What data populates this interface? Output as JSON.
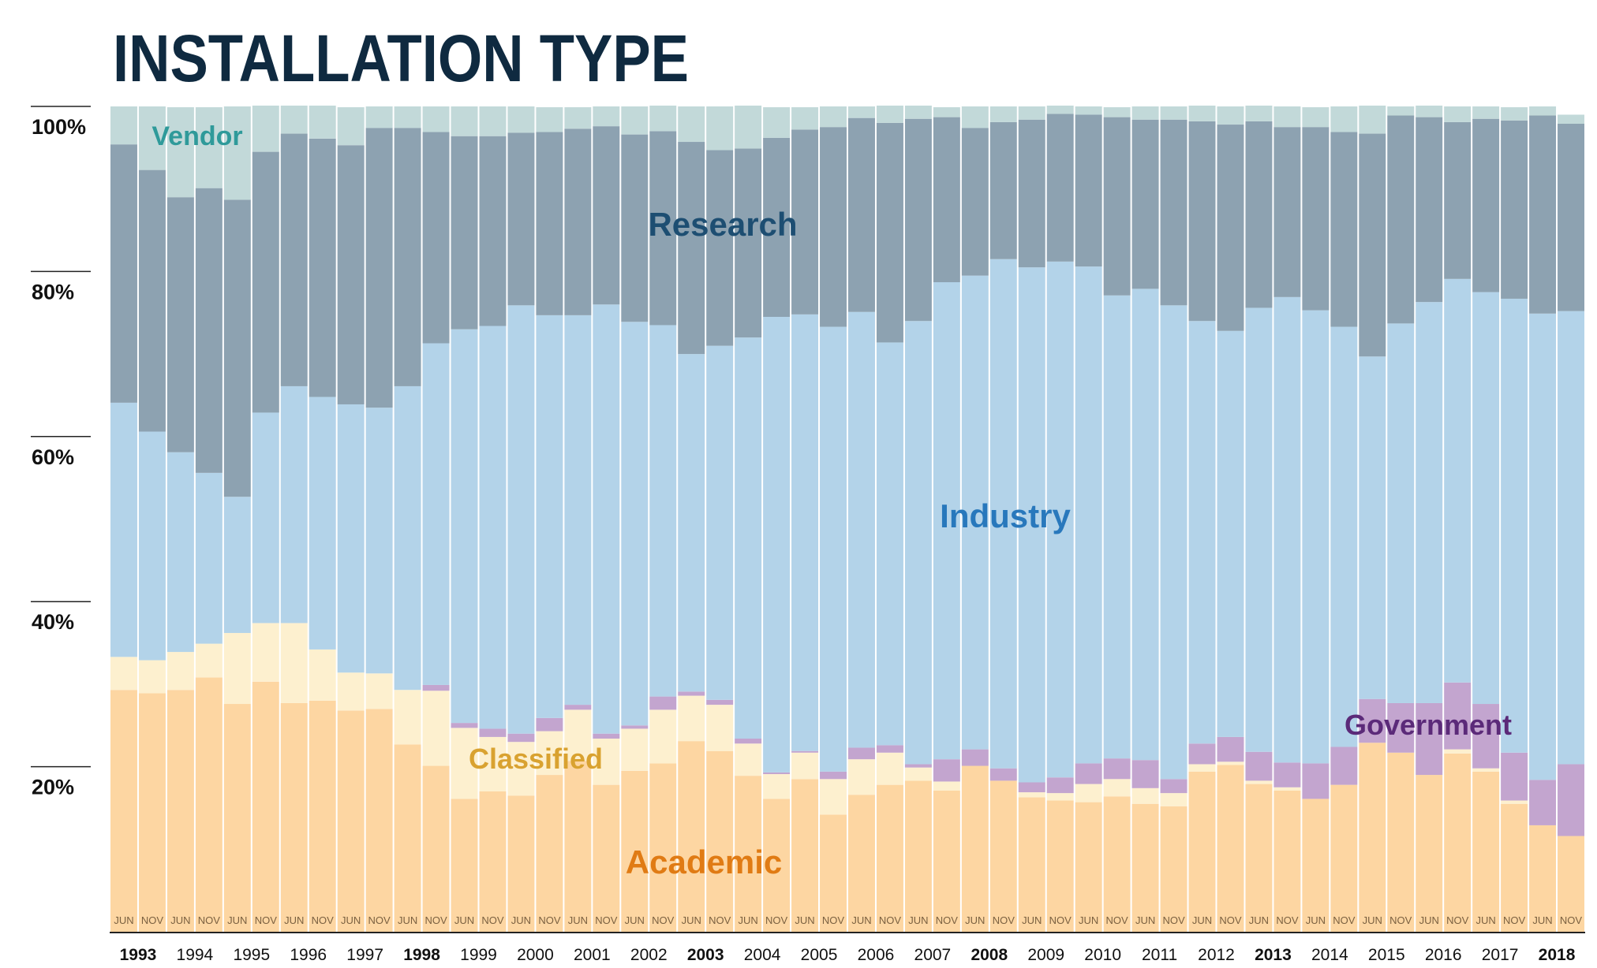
{
  "chart_data": {
    "type": "stacked_bar",
    "title": "INSTALLATION TYPE",
    "categories": [
      "JUN",
      "NOV",
      "JUN",
      "NOV",
      "JUN",
      "NOV",
      "JUN",
      "NOV",
      "JUN",
      "NOV",
      "JUN",
      "NOV",
      "JUN",
      "NOV",
      "JUN",
      "NOV",
      "JUN",
      "NOV",
      "JUN",
      "NOV",
      "JUN",
      "NOV",
      "JUN",
      "NOV",
      "JUN",
      "NOV",
      "JUN",
      "NOV",
      "JUN",
      "NOV",
      "JUN",
      "NOV",
      "JUN",
      "NOV",
      "JUN",
      "NOV",
      "JUN",
      "NOV",
      "JUN",
      "NOV",
      "JUN",
      "NOV",
      "JUN",
      "NOV",
      "JUN",
      "NOV",
      "JUN",
      "NOV",
      "JUN",
      "NOV",
      "JUN",
      "NOV"
    ],
    "years": [
      {
        "label": "1993",
        "bold": true
      },
      {
        "label": "1994",
        "bold": false
      },
      {
        "label": "1995",
        "bold": false
      },
      {
        "label": "1996",
        "bold": false
      },
      {
        "label": "1997",
        "bold": false
      },
      {
        "label": "1998",
        "bold": true
      },
      {
        "label": "1999",
        "bold": false
      },
      {
        "label": "2000",
        "bold": false
      },
      {
        "label": "2001",
        "bold": false
      },
      {
        "label": "2002",
        "bold": false
      },
      {
        "label": "2003",
        "bold": true
      },
      {
        "label": "2004",
        "bold": false
      },
      {
        "label": "2005",
        "bold": false
      },
      {
        "label": "2006",
        "bold": false
      },
      {
        "label": "2007",
        "bold": false
      },
      {
        "label": "2008",
        "bold": true
      },
      {
        "label": "2009",
        "bold": false
      },
      {
        "label": "2010",
        "bold": false
      },
      {
        "label": "2011",
        "bold": false
      },
      {
        "label": "2012",
        "bold": false
      },
      {
        "label": "2013",
        "bold": true
      },
      {
        "label": "2014",
        "bold": false
      },
      {
        "label": "2015",
        "bold": false
      },
      {
        "label": "2016",
        "bold": false
      },
      {
        "label": "2017",
        "bold": false
      },
      {
        "label": "2018",
        "bold": true
      }
    ],
    "series": [
      {
        "name": "Academic",
        "color": "#fdd6a2",
        "label_color": "#e07b14",
        "values": [
          29.3,
          28.9,
          29.3,
          30.8,
          27.6,
          30.3,
          27.7,
          28.0,
          26.8,
          27.0,
          22.7,
          20.1,
          16.1,
          17.0,
          16.5,
          19.0,
          20.7,
          17.8,
          19.5,
          20.4,
          23.1,
          21.9,
          18.9,
          16.1,
          18.5,
          14.2,
          16.6,
          17.8,
          18.3,
          17.1,
          20.1,
          18.3,
          16.3,
          15.9,
          15.7,
          16.4,
          15.5,
          15.2,
          19.4,
          20.2,
          17.9,
          17.1,
          16.1,
          17.8,
          22.9,
          21.7,
          19.0,
          21.6,
          19.4,
          15.5,
          12.9,
          11.6
        ]
      },
      {
        "name": "Classified",
        "color": "#fdf0cf",
        "label_color": "#d9a230",
        "values": [
          4.0,
          4.0,
          4.6,
          4.1,
          8.6,
          7.1,
          9.7,
          6.2,
          4.6,
          4.3,
          6.6,
          9.1,
          8.6,
          6.6,
          6.5,
          5.3,
          6.2,
          5.6,
          5.1,
          6.5,
          5.5,
          5.6,
          3.9,
          3.0,
          3.2,
          4.3,
          4.3,
          3.9,
          1.6,
          1.1,
          0,
          0,
          0.6,
          0.9,
          2.2,
          2.1,
          1.9,
          1.6,
          0.9,
          0.4,
          0.4,
          0.4,
          0,
          0,
          0,
          0,
          0,
          0.5,
          0.4,
          0.4,
          0,
          0
        ]
      },
      {
        "name": "Government",
        "color": "#c3a5cf",
        "label_color": "#5b2a79",
        "values": [
          0,
          0,
          0,
          0,
          0,
          0,
          0,
          0,
          0,
          0,
          0,
          0.7,
          0.6,
          1.0,
          1.0,
          1.6,
          0.6,
          0.6,
          0.4,
          1.6,
          0.5,
          0.6,
          0.6,
          0.2,
          0.2,
          0.9,
          1.4,
          0.9,
          0.4,
          2.7,
          2.0,
          1.5,
          1.2,
          1.9,
          2.5,
          2.5,
          3.4,
          1.7,
          2.5,
          3.0,
          3.5,
          3.0,
          4.3,
          4.6,
          5.3,
          6.0,
          8.7,
          8.1,
          7.8,
          5.8,
          5.5,
          8.7
        ]
      },
      {
        "name": "Industry",
        "color": "#b3d3e9",
        "label_color": "#2878bc",
        "values": [
          30.8,
          27.7,
          24.2,
          20.7,
          16.5,
          25.5,
          28.7,
          30.6,
          32.5,
          32.2,
          36.8,
          41.4,
          47.7,
          48.8,
          51.9,
          48.8,
          47.2,
          52.0,
          48.9,
          45.0,
          40.9,
          42.9,
          48.6,
          55.2,
          52.9,
          53.9,
          52.8,
          48.8,
          53.7,
          57.8,
          57.4,
          61.7,
          62.4,
          62.5,
          60.2,
          56.1,
          57.1,
          57.4,
          51.2,
          49.2,
          53.8,
          56.4,
          54.9,
          50.9,
          41.5,
          46.0,
          48.6,
          48.9,
          49.9,
          55.0,
          56.5,
          54.9
        ]
      },
      {
        "name": "Research",
        "color": "#8da2b1",
        "label_color": "#1d4e72",
        "values": [
          31.3,
          31.7,
          30.9,
          34.5,
          36.0,
          31.6,
          30.6,
          31.3,
          31.4,
          33.9,
          31.3,
          25.6,
          23.4,
          23.0,
          20.9,
          22.2,
          22.6,
          21.6,
          22.7,
          23.5,
          25.7,
          23.7,
          22.9,
          21.7,
          22.4,
          24.2,
          23.5,
          26.6,
          24.5,
          20.0,
          17.9,
          16.6,
          17.9,
          17.9,
          18.4,
          21.6,
          20.5,
          22.5,
          24.2,
          25.0,
          22.6,
          20.6,
          22.2,
          23.6,
          27.0,
          25.2,
          22.4,
          19.0,
          21.0,
          21.6,
          24.0,
          22.7
        ]
      },
      {
        "name": "Vendor",
        "color": "#c2d9d9",
        "label_color": "#2f9a9a",
        "values": [
          4.6,
          7.7,
          10.9,
          9.8,
          11.3,
          5.6,
          3.4,
          4.0,
          4.6,
          2.6,
          2.6,
          3.1,
          3.6,
          3.6,
          3.2,
          3.0,
          2.6,
          2.4,
          3.4,
          3.1,
          4.3,
          5.3,
          5.2,
          3.7,
          2.7,
          2.5,
          1.4,
          2.1,
          1.6,
          1.2,
          2.6,
          1.9,
          1.6,
          1.0,
          1.0,
          1.2,
          1.6,
          1.6,
          1.9,
          2.2,
          1.9,
          2.5,
          2.4,
          3.1,
          3.4,
          1.1,
          1.4,
          1.9,
          1.5,
          1.6,
          1.1,
          1.1
        ]
      }
    ],
    "ylim": [
      0,
      100
    ],
    "yticks": [
      {
        "value": 20,
        "label": "20%"
      },
      {
        "value": 40,
        "label": "40%"
      },
      {
        "value": 60,
        "label": "60%"
      },
      {
        "value": 80,
        "label": "80%"
      },
      {
        "value": 100,
        "label": "100%"
      }
    ]
  }
}
